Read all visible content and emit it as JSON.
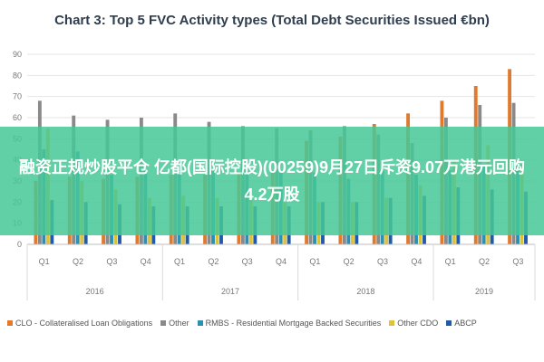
{
  "colors": {
    "axis_text": "#777777",
    "grid": "#e6e6e6",
    "overlay_bg": "#46c896"
  },
  "chart_data": {
    "type": "bar",
    "title": "Chart 3: Top 5 FVC Activity types (Total Debt Securities Issued €bn)",
    "xlabel": "",
    "ylabel": "",
    "ylim": [
      0,
      90
    ],
    "yticks": [
      0,
      10,
      20,
      30,
      40,
      50,
      60,
      70,
      80,
      90
    ],
    "grid": true,
    "legend_position": "bottom",
    "categories": [
      "Q1",
      "Q2",
      "Q3",
      "Q4",
      "Q1",
      "Q2",
      "Q3",
      "Q4",
      "Q1",
      "Q2",
      "Q3",
      "Q4",
      "Q1",
      "Q2",
      "Q3"
    ],
    "year_groups": [
      {
        "label": "2016",
        "count": 4
      },
      {
        "label": "2017",
        "count": 4
      },
      {
        "label": "2018",
        "count": 4
      },
      {
        "label": "2019",
        "count": 3
      }
    ],
    "series": [
      {
        "name": "CLO - Collateralised Loan Obligations",
        "color": "#e07a2e",
        "values": [
          30,
          32,
          31,
          32,
          33,
          33,
          34,
          35,
          49,
          51,
          57,
          62,
          68,
          75,
          83
        ]
      },
      {
        "name": "Other",
        "color": "#8a8a8a",
        "values": [
          68,
          61,
          59,
          60,
          62,
          58,
          56,
          55,
          54,
          56,
          52,
          48,
          60,
          66,
          67
        ]
      },
      {
        "name": "RMBS - Residential Mortgage Backed Securities",
        "color": "#2e8fb5",
        "values": [
          45,
          44,
          33,
          35,
          40,
          36,
          35,
          34,
          34,
          31,
          35,
          33,
          35,
          38,
          38
        ]
      },
      {
        "name": "Other CDO",
        "color": "#e0c23a",
        "values": [
          55,
          30,
          26,
          22,
          23,
          22,
          21,
          20,
          20,
          20,
          22,
          28,
          40,
          47,
          38
        ]
      },
      {
        "name": "ABCP",
        "color": "#1f5ba8",
        "values": [
          21,
          20,
          19,
          18,
          18,
          18,
          18,
          18,
          20,
          20,
          22,
          23,
          27,
          26,
          25
        ]
      }
    ]
  },
  "overlay": {
    "text": "融资正规炒股平仓 亿都(国际控股)(00259)9月27日斥资9.07万港元回购4.2万股"
  }
}
